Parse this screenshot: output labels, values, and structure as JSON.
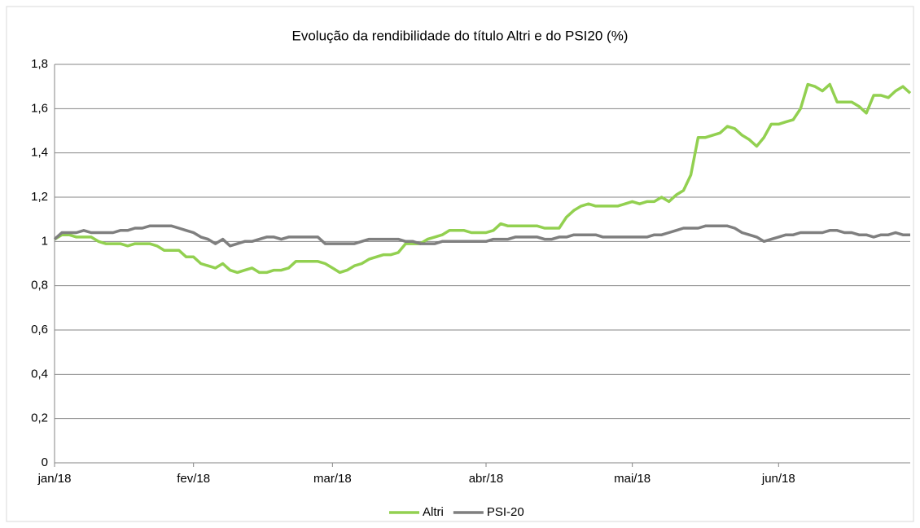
{
  "chart_data": {
    "type": "line",
    "title": "Evolução da rendibilidade do título Altri e do PSI20 (%)",
    "categories": [
      "jan/18",
      null,
      null,
      null,
      null,
      null,
      null,
      null,
      null,
      null,
      null,
      null,
      null,
      null,
      null,
      null,
      null,
      null,
      null,
      "fev/18",
      null,
      null,
      null,
      null,
      null,
      null,
      null,
      null,
      null,
      null,
      null,
      null,
      null,
      null,
      null,
      null,
      null,
      null,
      "mar/18",
      null,
      null,
      null,
      null,
      null,
      null,
      null,
      null,
      null,
      null,
      null,
      null,
      null,
      null,
      null,
      null,
      null,
      null,
      null,
      null,
      "abr/18",
      null,
      null,
      null,
      null,
      null,
      null,
      null,
      null,
      null,
      null,
      null,
      null,
      null,
      null,
      null,
      null,
      null,
      null,
      null,
      "mai/18",
      null,
      null,
      null,
      null,
      null,
      null,
      null,
      null,
      null,
      null,
      null,
      null,
      null,
      null,
      null,
      null,
      null,
      null,
      null,
      "jun/18",
      null,
      null,
      null,
      null,
      null,
      null,
      null,
      null,
      null,
      null,
      null,
      null,
      null,
      null,
      null,
      null,
      null,
      null
    ],
    "series": [
      {
        "name": "Altri",
        "color": "#92d050",
        "values": [
          1.01,
          1.03,
          1.03,
          1.02,
          1.02,
          1.02,
          1.0,
          0.99,
          0.99,
          0.99,
          0.98,
          0.99,
          0.99,
          0.99,
          0.98,
          0.96,
          0.96,
          0.96,
          0.93,
          0.93,
          0.9,
          0.89,
          0.88,
          0.9,
          0.87,
          0.86,
          0.87,
          0.88,
          0.86,
          0.86,
          0.87,
          0.87,
          0.88,
          0.91,
          0.91,
          0.91,
          0.91,
          0.9,
          0.88,
          0.86,
          0.87,
          0.89,
          0.9,
          0.92,
          0.93,
          0.94,
          0.94,
          0.95,
          0.99,
          0.99,
          0.99,
          1.01,
          1.02,
          1.03,
          1.05,
          1.05,
          1.05,
          1.04,
          1.04,
          1.04,
          1.05,
          1.08,
          1.07,
          1.07,
          1.07,
          1.07,
          1.07,
          1.06,
          1.06,
          1.06,
          1.11,
          1.14,
          1.16,
          1.17,
          1.16,
          1.16,
          1.16,
          1.16,
          1.17,
          1.18,
          1.17,
          1.18,
          1.18,
          1.2,
          1.18,
          1.21,
          1.23,
          1.3,
          1.47,
          1.47,
          1.48,
          1.49,
          1.52,
          1.51,
          1.48,
          1.46,
          1.43,
          1.47,
          1.53,
          1.53,
          1.54,
          1.55,
          1.6,
          1.71,
          1.7,
          1.68,
          1.71,
          1.63,
          1.63,
          1.63,
          1.61,
          1.58,
          1.66,
          1.66,
          1.65,
          1.68,
          1.7,
          1.67
        ]
      },
      {
        "name": "PSI-20",
        "color": "#7f7f7f",
        "values": [
          1.01,
          1.04,
          1.04,
          1.04,
          1.05,
          1.04,
          1.04,
          1.04,
          1.04,
          1.05,
          1.05,
          1.06,
          1.06,
          1.07,
          1.07,
          1.07,
          1.07,
          1.06,
          1.05,
          1.04,
          1.02,
          1.01,
          0.99,
          1.01,
          0.98,
          0.99,
          1.0,
          1.0,
          1.01,
          1.02,
          1.02,
          1.01,
          1.02,
          1.02,
          1.02,
          1.02,
          1.02,
          0.99,
          0.99,
          0.99,
          0.99,
          0.99,
          1.0,
          1.01,
          1.01,
          1.01,
          1.01,
          1.01,
          1.0,
          1.0,
          0.99,
          0.99,
          0.99,
          1.0,
          1.0,
          1.0,
          1.0,
          1.0,
          1.0,
          1.0,
          1.01,
          1.01,
          1.01,
          1.02,
          1.02,
          1.02,
          1.02,
          1.01,
          1.01,
          1.02,
          1.02,
          1.03,
          1.03,
          1.03,
          1.03,
          1.02,
          1.02,
          1.02,
          1.02,
          1.02,
          1.02,
          1.02,
          1.03,
          1.03,
          1.04,
          1.05,
          1.06,
          1.06,
          1.06,
          1.07,
          1.07,
          1.07,
          1.07,
          1.06,
          1.04,
          1.03,
          1.02,
          1.0,
          1.01,
          1.02,
          1.03,
          1.03,
          1.04,
          1.04,
          1.04,
          1.04,
          1.05,
          1.05,
          1.04,
          1.04,
          1.03,
          1.03,
          1.02,
          1.03,
          1.03,
          1.04,
          1.03,
          1.03
        ]
      }
    ],
    "ylim": [
      0,
      1.8
    ],
    "yticks": [
      0,
      {
        "value": 0.2,
        "label": "0,2"
      },
      {
        "value": 0.4,
        "label": "0,4"
      },
      {
        "value": 0.6,
        "label": "0,6"
      },
      {
        "value": 0.8,
        "label": "0,8"
      },
      1,
      {
        "value": 1.2,
        "label": "1,2"
      },
      {
        "value": 1.4,
        "label": "1,4"
      },
      {
        "value": 1.6,
        "label": "1,6"
      },
      {
        "value": 1.8,
        "label": "1,8"
      }
    ],
    "grid": true,
    "legend": "bottom"
  }
}
